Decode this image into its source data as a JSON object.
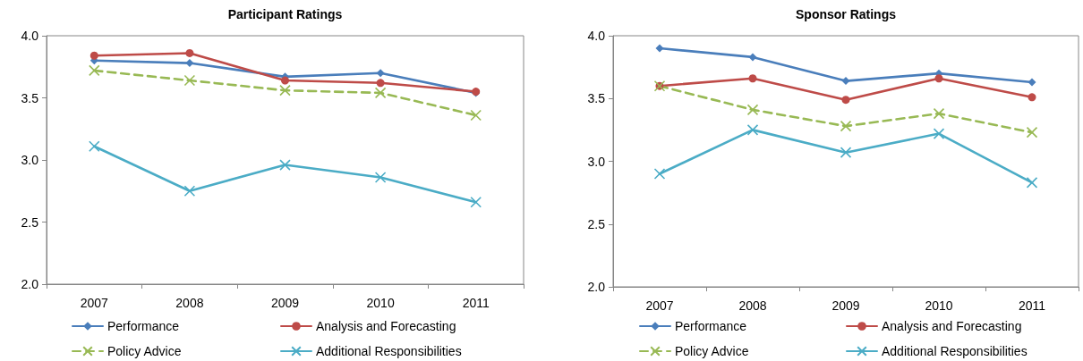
{
  "chart_data": [
    {
      "type": "line",
      "title": "Participant Ratings",
      "categories": [
        "2007",
        "2008",
        "2009",
        "2010",
        "2011"
      ],
      "ylim": [
        2,
        4
      ],
      "yticks": [
        {
          "value": 2,
          "label": "2.0"
        },
        {
          "value": 2.5,
          "label": "2.5"
        },
        {
          "value": 3,
          "label": "3.0"
        },
        {
          "value": 3.5,
          "label": "3.5"
        },
        {
          "value": 4,
          "label": "4.0"
        }
      ],
      "legend": "bottom",
      "series": [
        {
          "name": "Performance",
          "color": "#4a7ebb",
          "marker": "diamond",
          "values": [
            3.8,
            3.78,
            3.67,
            3.7,
            3.54
          ]
        },
        {
          "name": "Analysis and Forecasting",
          "color": "#be4b48",
          "marker": "circle",
          "values": [
            3.84,
            3.86,
            3.64,
            3.62,
            3.55
          ]
        },
        {
          "name": "Policy Advice",
          "color": "#98b954",
          "marker": "cross",
          "line_style": "dashed",
          "values": [
            3.72,
            3.64,
            3.56,
            3.54,
            3.36
          ]
        },
        {
          "name": "Additional Responsibilities",
          "color": "#4bacc6",
          "marker": "cross",
          "values": [
            3.11,
            2.75,
            2.96,
            2.86,
            2.66
          ]
        }
      ]
    },
    {
      "type": "line",
      "title": "Sponsor Ratings",
      "categories": [
        "2007",
        "2008",
        "2009",
        "2010",
        "2011"
      ],
      "ylim": [
        2,
        4
      ],
      "yticks": [
        {
          "value": 2,
          "label": "2.0"
        },
        {
          "value": 2.5,
          "label": "2.5"
        },
        {
          "value": 3,
          "label": "3.0"
        },
        {
          "value": 3.5,
          "label": "3.5"
        },
        {
          "value": 4,
          "label": "4.0"
        }
      ],
      "legend": "bottom",
      "series": [
        {
          "name": "Performance",
          "color": "#4a7ebb",
          "marker": "diamond",
          "values": [
            3.9,
            3.83,
            3.64,
            3.7,
            3.63
          ]
        },
        {
          "name": "Analysis and Forecasting",
          "color": "#be4b48",
          "marker": "circle",
          "values": [
            3.6,
            3.66,
            3.49,
            3.66,
            3.51
          ]
        },
        {
          "name": "Policy Advice",
          "color": "#98b954",
          "marker": "cross",
          "line_style": "dashed",
          "values": [
            3.6,
            3.41,
            3.28,
            3.38,
            3.23
          ]
        },
        {
          "name": "Additional Responsibilities",
          "color": "#4bacc6",
          "marker": "cross",
          "values": [
            2.9,
            3.25,
            3.07,
            3.22,
            2.83
          ]
        }
      ]
    }
  ]
}
